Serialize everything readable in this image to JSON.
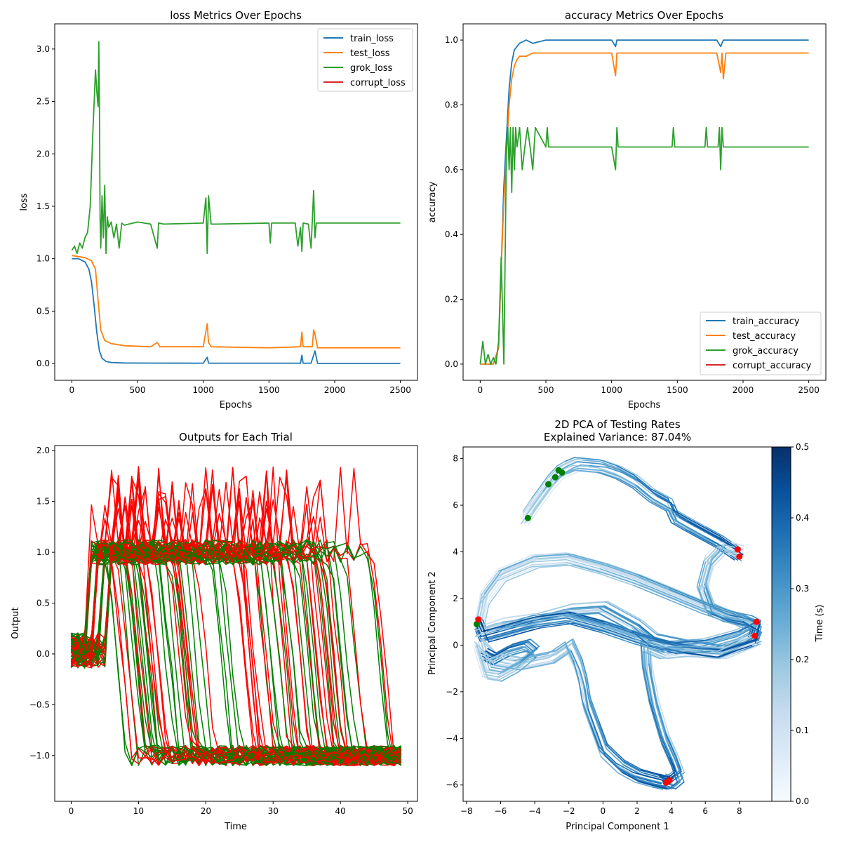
{
  "chart_data": [
    {
      "type": "line",
      "title": "loss Metrics Over Epochs",
      "xlabel": "Epochs",
      "ylabel": "loss",
      "xlim": [
        -130,
        2630
      ],
      "ylim": [
        -0.16,
        3.24
      ],
      "xticks": [
        0,
        500,
        1000,
        1500,
        2000,
        2500
      ],
      "yticks": [
        0.0,
        0.5,
        1.0,
        1.5,
        2.0,
        2.5,
        3.0
      ],
      "xtick_labels": [
        "0",
        "500",
        "1000",
        "1500",
        "2000",
        "2500"
      ],
      "ytick_labels": [
        "0.0",
        "0.5",
        "1.0",
        "1.5",
        "2.0",
        "2.5",
        "3.0"
      ],
      "legend_position": "top-right",
      "series": [
        {
          "name": "train_loss",
          "color": "#1f77b4",
          "x": [
            0,
            50,
            100,
            130,
            150,
            170,
            190,
            210,
            230,
            260,
            300,
            400,
            600,
            1000,
            1030,
            1040,
            1060,
            1500,
            1740,
            1750,
            1760,
            1820,
            1840,
            1850,
            1870,
            2000,
            2500
          ],
          "y": [
            1.0,
            1.0,
            0.97,
            0.9,
            0.78,
            0.55,
            0.3,
            0.12,
            0.05,
            0.02,
            0.01,
            0.005,
            0.004,
            0.003,
            0.06,
            0.004,
            0.003,
            0.003,
            0.003,
            0.08,
            0.003,
            0.003,
            0.08,
            0.12,
            0.002,
            0.001,
            0.001
          ]
        },
        {
          "name": "test_loss",
          "color": "#ff7f0e",
          "x": [
            0,
            50,
            100,
            150,
            180,
            200,
            220,
            250,
            300,
            400,
            600,
            650,
            670,
            800,
            1000,
            1030,
            1040,
            1060,
            1500,
            1740,
            1750,
            1760,
            1830,
            1840,
            1850,
            1870,
            2000,
            2500
          ],
          "y": [
            1.03,
            1.02,
            1.01,
            0.98,
            0.9,
            0.6,
            0.32,
            0.22,
            0.19,
            0.17,
            0.16,
            0.2,
            0.16,
            0.16,
            0.16,
            0.38,
            0.2,
            0.16,
            0.15,
            0.16,
            0.3,
            0.16,
            0.16,
            0.32,
            0.28,
            0.15,
            0.15,
            0.15
          ]
        },
        {
          "name": "grok_loss",
          "color": "#2ca02c",
          "x": [
            0,
            20,
            40,
            60,
            80,
            100,
            120,
            140,
            160,
            170,
            180,
            190,
            200,
            205,
            210,
            215,
            220,
            230,
            240,
            250,
            260,
            270,
            280,
            300,
            320,
            340,
            360,
            380,
            400,
            500,
            600,
            650,
            660,
            700,
            1000,
            1020,
            1030,
            1040,
            1060,
            1100,
            1500,
            1510,
            1520,
            1700,
            1720,
            1740,
            1750,
            1760,
            1800,
            1820,
            1840,
            1850,
            1860,
            1900,
            2000,
            2500
          ],
          "y": [
            1.08,
            1.12,
            1.05,
            1.15,
            1.1,
            1.2,
            1.25,
            1.5,
            2.2,
            2.5,
            2.8,
            2.6,
            2.45,
            3.07,
            2.5,
            1.4,
            1.1,
            1.6,
            1.2,
            1.7,
            1.05,
            1.4,
            1.3,
            1.35,
            1.2,
            1.33,
            1.1,
            1.34,
            1.32,
            1.35,
            1.33,
            1.1,
            1.34,
            1.33,
            1.34,
            1.58,
            1.05,
            1.6,
            1.33,
            1.33,
            1.34,
            1.15,
            1.34,
            1.34,
            1.12,
            1.3,
            1.07,
            1.34,
            1.33,
            1.1,
            1.65,
            1.2,
            1.34,
            1.34,
            1.34,
            1.34
          ]
        },
        {
          "name": "corrupt_loss",
          "color": "#d62728",
          "x": [],
          "y": []
        }
      ]
    },
    {
      "type": "line",
      "title": "accuracy Metrics Over Epochs",
      "xlabel": "Epochs",
      "ylabel": "accuracy",
      "xlim": [
        -130,
        2630
      ],
      "ylim": [
        -0.05,
        1.05
      ],
      "xticks": [
        0,
        500,
        1000,
        1500,
        2000,
        2500
      ],
      "yticks": [
        0.0,
        0.2,
        0.4,
        0.6,
        0.8,
        1.0
      ],
      "xtick_labels": [
        "0",
        "500",
        "1000",
        "1500",
        "2000",
        "2500"
      ],
      "ytick_labels": [
        "0.0",
        "0.2",
        "0.4",
        "0.6",
        "0.8",
        "1.0"
      ],
      "legend_position": "bottom-right",
      "series": [
        {
          "name": "train_accuracy",
          "color": "#1f77b4",
          "x": [
            0,
            100,
            140,
            160,
            180,
            200,
            220,
            240,
            260,
            300,
            350,
            400,
            500,
            1000,
            1030,
            1040,
            1800,
            1830,
            1840,
            1850,
            1900,
            2500
          ],
          "y": [
            0.0,
            0.0,
            0.05,
            0.3,
            0.55,
            0.7,
            0.85,
            0.93,
            0.97,
            0.99,
            1.0,
            0.99,
            1.0,
            1.0,
            0.98,
            1.0,
            1.0,
            0.98,
            0.99,
            1.0,
            1.0,
            1.0
          ]
        },
        {
          "name": "test_accuracy",
          "color": "#ff7f0e",
          "x": [
            0,
            100,
            140,
            160,
            180,
            200,
            220,
            240,
            260,
            280,
            300,
            350,
            400,
            500,
            1000,
            1030,
            1040,
            1060,
            1800,
            1830,
            1840,
            1850,
            1870,
            1900,
            2500
          ],
          "y": [
            0.0,
            0.0,
            0.05,
            0.3,
            0.5,
            0.65,
            0.8,
            0.88,
            0.92,
            0.94,
            0.95,
            0.95,
            0.96,
            0.96,
            0.96,
            0.89,
            0.96,
            0.96,
            0.96,
            0.9,
            0.96,
            0.88,
            0.96,
            0.96,
            0.96
          ]
        },
        {
          "name": "grok_accuracy",
          "color": "#2ca02c",
          "x": [
            0,
            20,
            40,
            60,
            80,
            100,
            120,
            140,
            160,
            180,
            200,
            210,
            220,
            230,
            240,
            250,
            260,
            270,
            280,
            300,
            320,
            340,
            360,
            380,
            400,
            410,
            420,
            500,
            510,
            520,
            1000,
            1030,
            1040,
            1050,
            1460,
            1470,
            1480,
            1710,
            1720,
            1730,
            1810,
            1820,
            1830,
            1840,
            1850,
            1860,
            1900,
            2500
          ],
          "y": [
            0.0,
            0.07,
            0.0,
            0.03,
            0.0,
            0.02,
            0.0,
            0.07,
            0.33,
            0.0,
            0.67,
            0.73,
            0.6,
            0.73,
            0.53,
            0.73,
            0.6,
            0.73,
            0.67,
            0.73,
            0.6,
            0.67,
            0.73,
            0.67,
            0.6,
            0.67,
            0.73,
            0.67,
            0.73,
            0.67,
            0.67,
            0.6,
            0.73,
            0.67,
            0.67,
            0.73,
            0.67,
            0.67,
            0.73,
            0.67,
            0.67,
            0.73,
            0.6,
            0.73,
            0.67,
            0.67,
            0.67,
            0.67
          ]
        },
        {
          "name": "corrupt_accuracy",
          "color": "#d62728",
          "x": [],
          "y": []
        }
      ]
    },
    {
      "type": "line",
      "title": "Outputs for Each Trial",
      "xlabel": "Time",
      "ylabel": "Output",
      "xlim": [
        -2.45,
        51.45
      ],
      "ylim": [
        -1.45,
        2.05
      ],
      "xticks": [
        0,
        10,
        20,
        30,
        40,
        50
      ],
      "yticks": [
        -1.0,
        -0.5,
        0.0,
        0.5,
        1.0,
        1.5,
        2.0
      ],
      "xtick_labels": [
        "0",
        "10",
        "20",
        "30",
        "40",
        "50"
      ],
      "ytick_labels": [
        "−1.0",
        "−0.5",
        "0.0",
        "0.5",
        "1.0",
        "1.5",
        "2.0"
      ],
      "trials": {
        "count": 90,
        "timesteps": 50,
        "colors": [
          "#008000",
          "#ff0000"
        ],
        "levels": [
          1.0,
          -1.0
        ],
        "switch_range": [
          5,
          45
        ]
      }
    },
    {
      "type": "line",
      "title": "2D PCA of Testing Rates",
      "subtitle": "Explained Variance: 87.04%",
      "xlabel": "Principal Component 1",
      "ylabel": "Principal Component 2",
      "xlim": [
        -8.2,
        9.9
      ],
      "ylim": [
        -6.7,
        8.5
      ],
      "xticks": [
        -8,
        -6,
        -4,
        -2,
        0,
        2,
        4,
        6,
        8
      ],
      "yticks": [
        -6,
        -4,
        -2,
        0,
        2,
        4,
        6,
        8
      ],
      "xtick_labels": [
        "−8",
        "−6",
        "−4",
        "−2",
        "0",
        "2",
        "4",
        "6",
        "8"
      ],
      "ytick_labels": [
        "−6",
        "−4",
        "−2",
        "0",
        "2",
        "4",
        "6",
        "8"
      ],
      "colorbar": {
        "label": "Time (s)",
        "range": [
          0.0,
          0.5
        ],
        "ticks": [
          0.0,
          0.1,
          0.2,
          0.3,
          0.4,
          0.5
        ],
        "tick_labels": [
          "0.0",
          "0.1",
          "0.2",
          "0.3",
          "0.4",
          "0.5"
        ],
        "colormap": [
          "#f7fbff",
          "#deebf7",
          "#c6dbef",
          "#9ecae1",
          "#6baed6",
          "#4292c6",
          "#2171b5",
          "#08519c",
          "#08306b"
        ]
      },
      "paths": [
        {
          "name": "upper arc",
          "x": [
            -4.5,
            -4.0,
            -3.5,
            -3.0,
            -2.5,
            -2.0,
            -1.5,
            -1.0,
            0.0,
            1.0,
            2.0,
            3.0,
            4.0,
            4.3,
            5.0,
            6.0,
            7.0,
            7.8,
            8.0
          ],
          "y": [
            5.45,
            6.0,
            6.5,
            7.0,
            7.4,
            7.6,
            7.75,
            7.72,
            7.65,
            7.4,
            7.0,
            6.4,
            6.0,
            5.5,
            5.2,
            4.8,
            4.4,
            4.0,
            3.9
          ]
        },
        {
          "name": "right loop",
          "x": [
            8.0,
            7.0,
            6.2,
            5.8,
            6.3,
            7.2,
            8.5,
            9.0,
            8.8
          ],
          "y": [
            4.0,
            4.2,
            3.6,
            2.5,
            1.5,
            1.2,
            1.0,
            0.8,
            0.3
          ]
        },
        {
          "name": "upper band",
          "x": [
            -7.3,
            -7.0,
            -6.0,
            -4.0,
            -2.0,
            0.0,
            2.0,
            4.0,
            6.0,
            8.0,
            9.0,
            8.0,
            6.0,
            4.0,
            2.0,
            0.0,
            -2.0,
            -4.0,
            -6.0,
            -7.0,
            -7.3
          ],
          "y": [
            0.9,
            2.0,
            3.0,
            3.6,
            3.7,
            3.3,
            2.8,
            2.2,
            1.6,
            1.1,
            0.8,
            0.4,
            0.0,
            -0.1,
            0.3,
            0.8,
            1.2,
            1.0,
            0.6,
            0.4,
            0.9
          ]
        },
        {
          "name": "mid band",
          "x": [
            -7.2,
            -6.0,
            -4.0,
            -2.0,
            0.0,
            2.0,
            3.0,
            5.0,
            7.0,
            9.0
          ],
          "y": [
            0.6,
            0.9,
            1.1,
            1.5,
            1.6,
            0.8,
            0.2,
            -0.1,
            -0.3,
            0.2
          ]
        },
        {
          "name": "lower band",
          "x": [
            -7.3,
            -6.5,
            -5.0,
            -3.0,
            -2.0,
            -1.5,
            -1.2,
            -1.0,
            -0.5,
            0.0,
            1.0,
            2.0,
            3.0,
            3.6
          ],
          "y": [
            0.0,
            -0.6,
            -0.8,
            -0.5,
            0.0,
            -0.8,
            -1.6,
            -2.5,
            -3.5,
            -4.5,
            -5.2,
            -5.6,
            -5.8,
            -5.9
          ]
        },
        {
          "name": "right spike",
          "x": [
            9.0,
            7.0,
            5.0,
            3.5,
            2.5,
            2.6,
            3.0,
            3.6,
            4.2,
            4.5,
            4.0,
            3.6
          ],
          "y": [
            0.3,
            -0.3,
            -0.2,
            -0.3,
            0.0,
            -1.0,
            -2.5,
            -4.0,
            -5.0,
            -5.6,
            -5.9,
            -5.8
          ]
        },
        {
          "name": "lower-left loop",
          "x": [
            -7.3,
            -6.8,
            -6.0,
            -5.0,
            -4.0,
            -4.5,
            -5.5,
            -6.5,
            -7.0
          ],
          "y": [
            0.0,
            -1.2,
            -1.3,
            -0.9,
            -0.3,
            0.0,
            -0.2,
            -0.6,
            -0.4
          ]
        }
      ],
      "start_points": {
        "color": "#008000",
        "x": [
          -4.4,
          -3.2,
          -2.8,
          -2.6,
          -2.4,
          -7.4
        ],
        "y": [
          5.45,
          6.9,
          7.2,
          7.5,
          7.4,
          0.9
        ]
      },
      "end_points": {
        "color": "#ff0000",
        "x": [
          7.9,
          8.0,
          9.0,
          8.9,
          3.7,
          3.9,
          -7.3
        ],
        "y": [
          4.1,
          3.8,
          1.0,
          0.4,
          -5.9,
          -5.8,
          1.1
        ]
      }
    }
  ]
}
